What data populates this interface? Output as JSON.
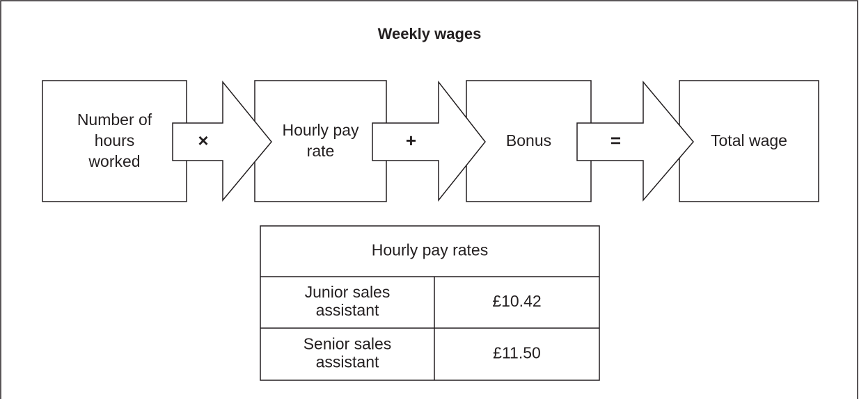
{
  "title": "Weekly wages",
  "nodes": [
    {
      "lines": [
        "Number of",
        "hours",
        "worked"
      ]
    },
    {
      "lines": [
        "Hourly pay",
        "rate"
      ]
    },
    {
      "lines": [
        "Bonus"
      ]
    },
    {
      "lines": [
        "Total wage"
      ]
    }
  ],
  "operators": [
    "×",
    "+",
    "="
  ],
  "table": {
    "header": "Hourly pay rates",
    "rows": [
      [
        [
          "Junior sales",
          "assistant"
        ],
        [
          "£10.42"
        ]
      ],
      [
        [
          "Senior sales",
          "assistant"
        ],
        [
          "£11.50"
        ]
      ]
    ]
  }
}
